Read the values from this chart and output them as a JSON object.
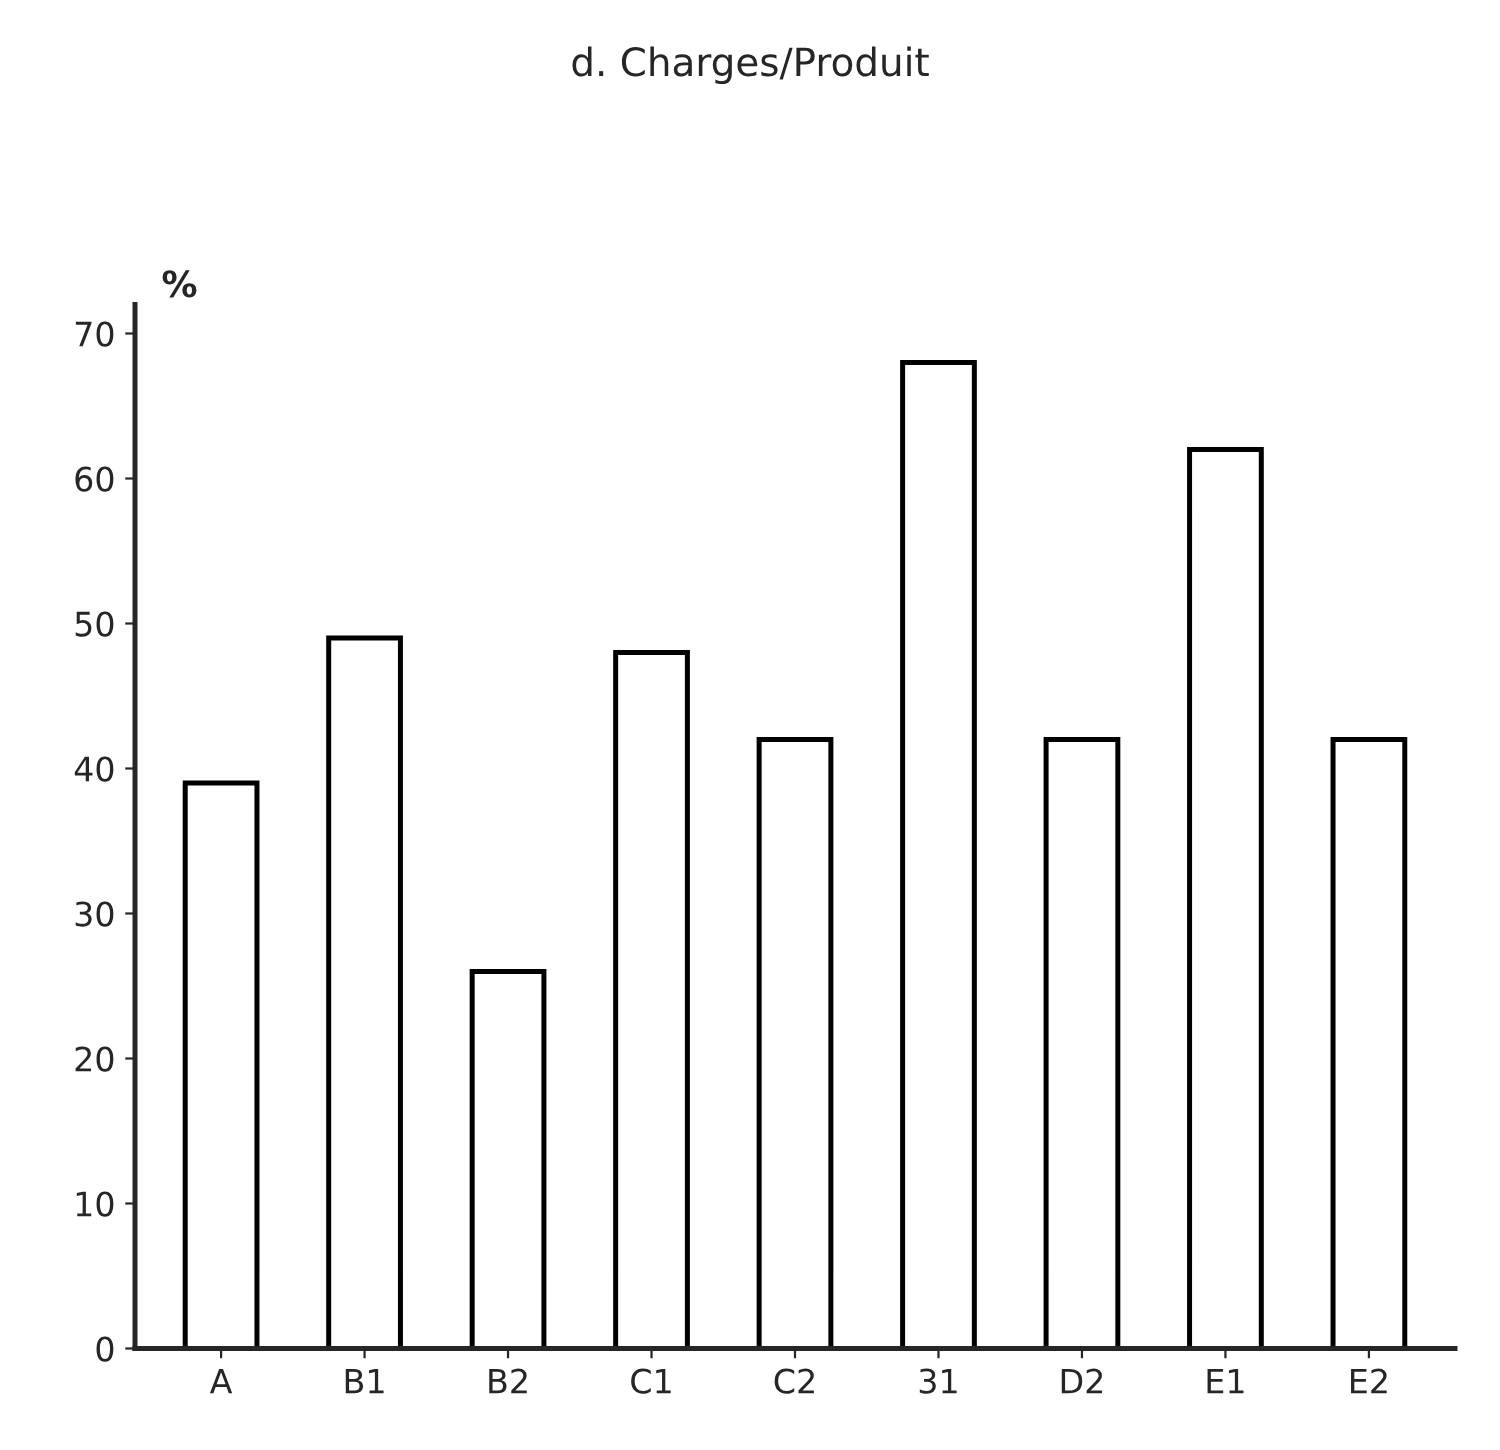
{
  "chart_data": {
    "type": "bar",
    "title": "d. Charges/Produit",
    "ylabel": "%",
    "categories": [
      "A",
      "B1",
      "B2",
      "C1",
      "C2",
      "31",
      "D2",
      "E1",
      "E2"
    ],
    "values": [
      39,
      49,
      26,
      48,
      42,
      68,
      42,
      62,
      42
    ],
    "color": "#ffffff",
    "ylim": [
      0,
      72
    ],
    "yticks": [
      0,
      10,
      20,
      30,
      40,
      50,
      60,
      70
    ],
    "grid": false,
    "legend": false
  }
}
